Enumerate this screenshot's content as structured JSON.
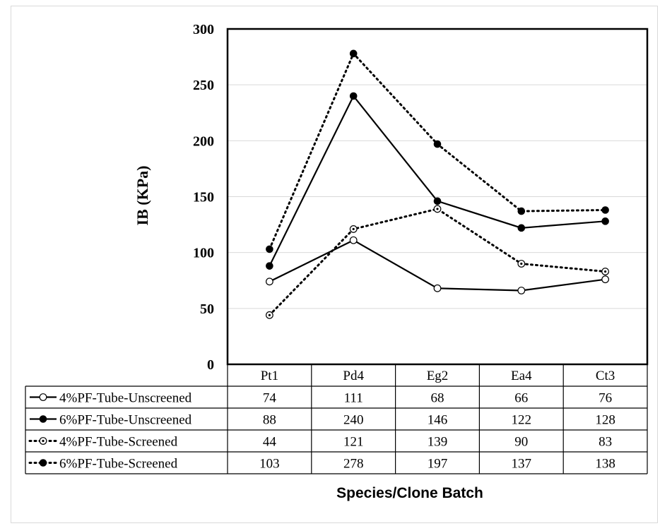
{
  "chart_data": {
    "type": "line",
    "title": "",
    "xlabel": "Species/Clone Batch",
    "ylabel": "IB (KPa)",
    "ylim": [
      0,
      300
    ],
    "yticks": [
      0,
      50,
      100,
      150,
      200,
      250,
      300
    ],
    "grid": true,
    "categories": [
      "Pt1",
      "Pd4",
      "Eg2",
      "Ea4",
      "Ct3"
    ],
    "series": [
      {
        "name": "4%PF-Tube-Unscreened",
        "values": [
          74,
          111,
          68,
          66,
          76
        ],
        "line": "solid",
        "marker": "open-circle"
      },
      {
        "name": "6%PF-Tube-Unscreened",
        "values": [
          88,
          240,
          146,
          122,
          128
        ],
        "line": "solid",
        "marker": "filled-circle"
      },
      {
        "name": "4%PF-Tube-Screened",
        "values": [
          44,
          121,
          139,
          90,
          83
        ],
        "line": "dotted",
        "marker": "dotted-circle"
      },
      {
        "name": "6%PF-Tube-Screened",
        "values": [
          103,
          278,
          197,
          137,
          138
        ],
        "line": "dotted",
        "marker": "filled-circle"
      }
    ],
    "legend_placement": "data-table"
  },
  "colors": {
    "line": "#000000",
    "grid": "#d9d9d9",
    "frame": "#d9d9d9",
    "background": "#ffffff"
  }
}
